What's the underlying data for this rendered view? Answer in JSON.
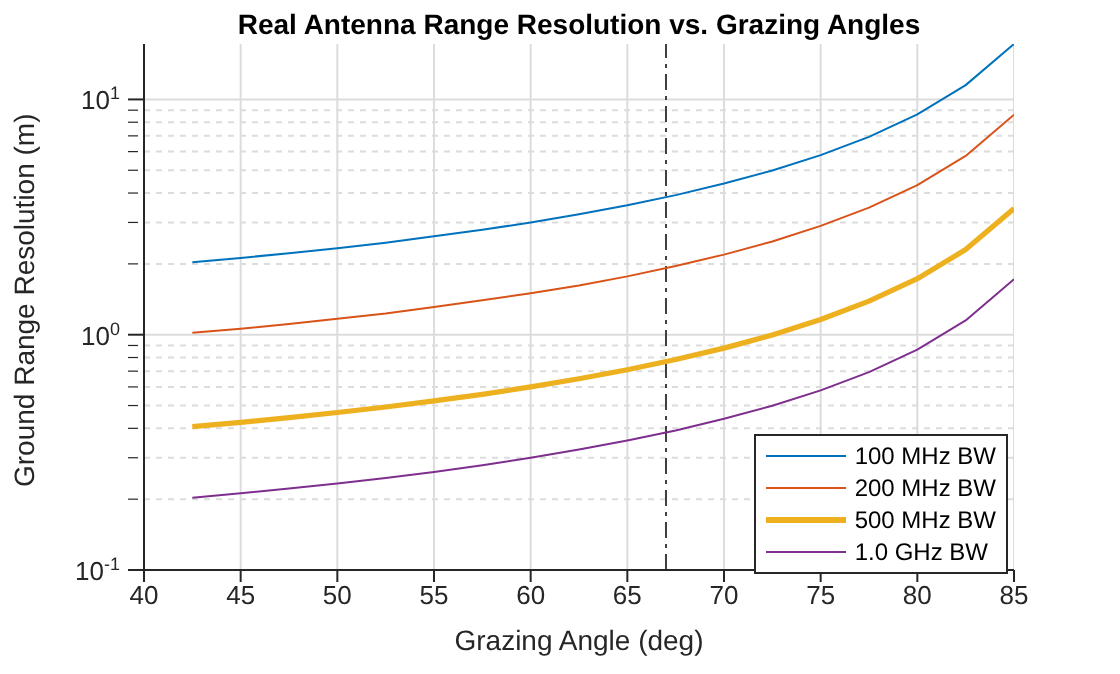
{
  "chart_data": {
    "type": "line",
    "title": "Real Antenna Range Resolution vs. Grazing Angles",
    "xlabel": "Grazing Angle (deg)",
    "ylabel": "Ground Range Resolution (m)",
    "x": [
      42.5,
      45,
      47.5,
      50,
      52.5,
      55,
      57.5,
      60,
      62.5,
      65,
      67.5,
      70,
      72.5,
      75,
      77.5,
      80,
      82.5,
      85
    ],
    "series": [
      {
        "name": "100 MHz BW",
        "color": "#0072bd",
        "values": [
          2.03,
          2.12,
          2.22,
          2.33,
          2.46,
          2.62,
          2.79,
          3.0,
          3.25,
          3.55,
          3.92,
          4.39,
          4.99,
          5.8,
          6.93,
          8.64,
          11.5,
          17.2
        ]
      },
      {
        "name": "200 MHz BW",
        "color": "#d95319",
        "values": [
          1.02,
          1.06,
          1.11,
          1.17,
          1.23,
          1.31,
          1.4,
          1.5,
          1.62,
          1.77,
          1.96,
          2.19,
          2.49,
          2.9,
          3.47,
          4.32,
          5.75,
          8.61
        ]
      },
      {
        "name": "500 MHz BW",
        "color": "#edb120",
        "values": [
          0.407,
          0.424,
          0.444,
          0.467,
          0.493,
          0.523,
          0.558,
          0.6,
          0.65,
          0.71,
          0.784,
          0.877,
          0.998,
          1.16,
          1.39,
          1.73,
          2.3,
          3.44
        ]
      },
      {
        "name": "1.0 GHz BW",
        "color": "#7e2f8e",
        "values": [
          0.203,
          0.212,
          0.222,
          0.233,
          0.246,
          0.261,
          0.279,
          0.3,
          0.325,
          0.355,
          0.392,
          0.439,
          0.499,
          0.58,
          0.693,
          0.864,
          1.15,
          1.72
        ]
      }
    ],
    "log": "y",
    "xlim": [
      40,
      85
    ],
    "xticks": [
      40,
      45,
      50,
      55,
      60,
      65,
      70,
      75,
      80,
      85
    ],
    "ylim": [
      0.1,
      17.2
    ],
    "yticks": [
      {
        "value": 0.1,
        "label": "10$^{-1}$"
      },
      {
        "value": 0.2,
        "label": null
      },
      {
        "value": 0.3,
        "label": null
      },
      {
        "value": 0.4,
        "label": null
      },
      {
        "value": 0.5,
        "label": null
      },
      {
        "value": 0.6,
        "label": null
      },
      {
        "value": 0.7,
        "label": null
      },
      {
        "value": 0.8,
        "label": null
      },
      {
        "value": 0.9,
        "label": null
      },
      {
        "value": 1,
        "label": "10$^{0}$"
      },
      {
        "value": 2,
        "label": null
      },
      {
        "value": 3,
        "label": null
      },
      {
        "value": 4,
        "label": null
      },
      {
        "value": 5,
        "label": null
      },
      {
        "value": 6,
        "label": null
      },
      {
        "value": 7,
        "label": null
      },
      {
        "value": 8,
        "label": null
      },
      {
        "value": 9,
        "label": null
      },
      {
        "value": 10,
        "label": "10$^{1}$"
      }
    ],
    "ref_lines": [
      {
        "axis": "x",
        "value": 67,
        "label": null,
        "color": "#404040",
        "line_style": "dashdot"
      }
    ],
    "grid": true,
    "legend": "bottom right",
    "marker": "none",
    "line_style": "solid"
  }
}
